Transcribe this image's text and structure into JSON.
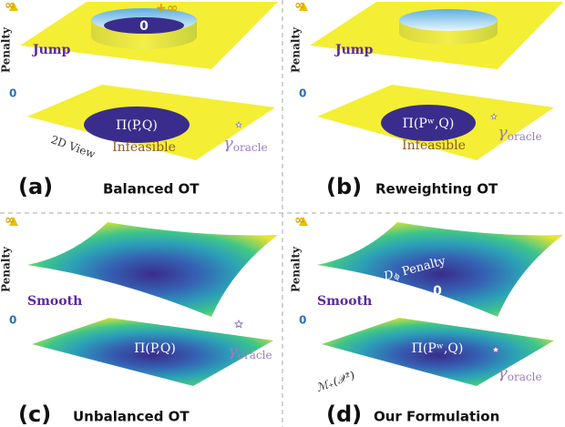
{
  "panels": [
    {
      "axis": {
        "top": "∞",
        "label": "Penalty",
        "bottom": "0"
      },
      "top_level": "Jump",
      "plus_inf": "+∞",
      "zero": "0",
      "feasible_set": "Π(P,Q)",
      "view_label": "2D View",
      "infeasible": "Infeasible",
      "oracle": {
        "symbol": "γ",
        "subscript": "oracle"
      },
      "letter": "(a)",
      "title": "Balanced OT"
    },
    {
      "axis": {
        "top": "∞",
        "label": "Penalty",
        "bottom": "0"
      },
      "top_level": "Jump",
      "feasible_set": "Π(Pʷ,Q)",
      "infeasible": "Infeasible",
      "oracle": {
        "symbol": "γ",
        "subscript": "oracle"
      },
      "letter": "(b)",
      "title": "Reweighting OT"
    },
    {
      "axis": {
        "top": "∞",
        "label": "Penalty",
        "bottom": "0"
      },
      "top_level": "Smooth",
      "feasible_set": "Π(P,Q)",
      "oracle": {
        "symbol": "γ",
        "subscript": "oracle"
      },
      "letter": "(c)",
      "title": "Unbalanced OT"
    },
    {
      "axis": {
        "top": "∞",
        "label": "Penalty",
        "bottom": "0"
      },
      "top_level": "Smooth",
      "penalty_label": {
        "symbol": "D",
        "subscript": "ϕ",
        "text": " Penalty"
      },
      "zero": "0",
      "feasible_set": "Π(Pʷ,Q)",
      "space_label": "ℳ₊(𝒳²)",
      "oracle": {
        "symbol": "γ",
        "subscript": "oracle"
      },
      "letter": "(d)",
      "title": "Our Formulation"
    }
  ]
}
